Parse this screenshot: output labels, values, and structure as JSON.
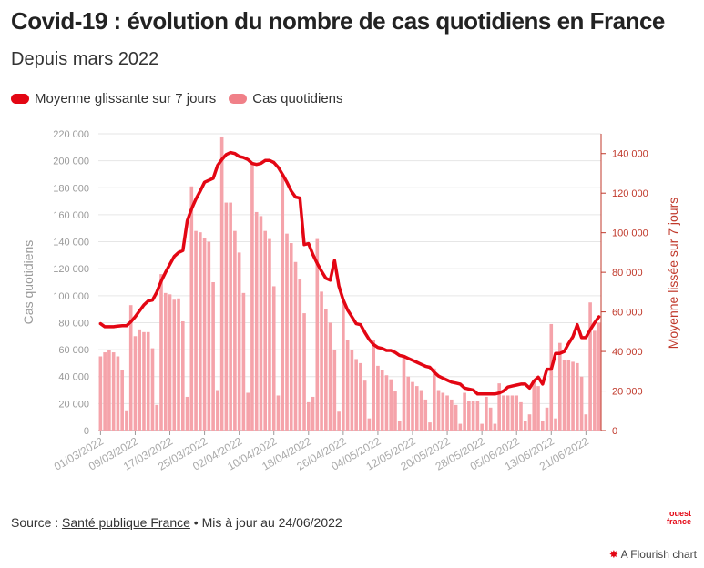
{
  "header": {
    "title": "Covid-19 : évolution du nombre de cas quotidiens en France",
    "subtitle": "Depuis mars 2022"
  },
  "legend": [
    {
      "label": "Moyenne glissante sur 7 jours",
      "color": "#e30613"
    },
    {
      "label": "Cas quotidiens",
      "color": "#f08088"
    }
  ],
  "footer": {
    "source_prefix": "Source : ",
    "source_link": "Santé publique France",
    "bullet": " • ",
    "updated": "Mis à jour au 24/06/2022",
    "logo_line1": "ouest",
    "logo_line2": "france",
    "flourish": "A Flourish chart",
    "flourish_star": "✸"
  },
  "chart_data": {
    "type": "bar+line",
    "ylabel": "Cas quotidiens",
    "y2label": "Moyenne lissée sur 7 jours",
    "ylim": [
      0,
      220000
    ],
    "y2lim": [
      0,
      150000
    ],
    "yticks": [
      "0",
      "20 000",
      "40 000",
      "60 000",
      "80 000",
      "100 000",
      "120 000",
      "140 000",
      "160 000",
      "180 000",
      "200 000",
      "220 000"
    ],
    "y2ticks": [
      "0",
      "20 000",
      "40 000",
      "60 000",
      "80 000",
      "100 000",
      "120 000",
      "140 000"
    ],
    "xticks": [
      "01/03/2022",
      "09/03/2022",
      "17/03/2022",
      "25/03/2022",
      "02/04/2022",
      "10/04/2022",
      "18/04/2022",
      "26/04/2022",
      "04/05/2022",
      "12/05/2022",
      "20/05/2022",
      "28/05/2022",
      "05/06/2022",
      "13/06/2022",
      "21/06/2022"
    ],
    "bar_color": "#f5a3aa",
    "line_color": "#e30613",
    "grid": true,
    "legend_position": "top-left",
    "start_date": "01/03/2022",
    "bars": [
      55000,
      58000,
      60000,
      58000,
      55000,
      45000,
      15000,
      93000,
      70000,
      75000,
      73000,
      73000,
      61000,
      19000,
      116000,
      102000,
      101000,
      97000,
      98000,
      81000,
      25000,
      181000,
      148000,
      147000,
      143000,
      140000,
      110000,
      30000,
      218000,
      169000,
      169000,
      148000,
      132000,
      102000,
      28000,
      199000,
      162000,
      159000,
      148000,
      142000,
      107000,
      26000,
      190000,
      146000,
      139000,
      125000,
      112000,
      87000,
      21000,
      25000,
      142000,
      103000,
      90000,
      80000,
      60000,
      14000,
      97000,
      67000,
      60000,
      53000,
      50000,
      37000,
      9000,
      67000,
      48000,
      45000,
      41000,
      38000,
      29000,
      7000,
      56000,
      40000,
      36000,
      33000,
      30000,
      23000,
      6000,
      46000,
      30000,
      28000,
      26000,
      23000,
      19000,
      5000,
      28000,
      22000,
      22000,
      22000,
      5000,
      25000,
      17000,
      5000,
      35000,
      26000,
      26000,
      26000,
      26000,
      21000,
      7000,
      12000,
      37000,
      33000,
      7000,
      17000,
      79000,
      9000,
      65000,
      52000,
      52000,
      51000,
      50000,
      40000,
      12000,
      95000,
      74000,
      80000
    ],
    "moving_average": [
      54000,
      52500,
      52500,
      52500,
      52800,
      53000,
      53000,
      55000,
      57500,
      60500,
      63500,
      65500,
      66000,
      70000,
      75500,
      80000,
      84000,
      88000,
      90000,
      91000,
      106000,
      112000,
      117000,
      121000,
      125500,
      126500,
      127500,
      134000,
      137000,
      139500,
      140500,
      140000,
      138500,
      138000,
      137000,
      135000,
      134500,
      135000,
      136500,
      136500,
      135500,
      133000,
      129500,
      125500,
      121000,
      118000,
      117500,
      94000,
      94500,
      89000,
      84500,
      80500,
      77000,
      76000,
      86000,
      73000,
      66000,
      61000,
      57500,
      54000,
      53500,
      49500,
      46000,
      43500,
      42000,
      41500,
      40500,
      40500,
      39500,
      38000,
      37500,
      36500,
      35500,
      34500,
      33500,
      32500,
      32000,
      29500,
      27500,
      26500,
      25500,
      24500,
      24000,
      23500,
      21500,
      21000,
      20500,
      18500,
      18500,
      18500,
      18500,
      18500,
      19000,
      20000,
      22000,
      22500,
      23000,
      23500,
      23500,
      21500,
      25000,
      27000,
      23500,
      31000,
      31000,
      39000,
      39000,
      40000,
      44000,
      47500,
      53500,
      47000,
      47000,
      51000,
      54500,
      57500
    ]
  }
}
